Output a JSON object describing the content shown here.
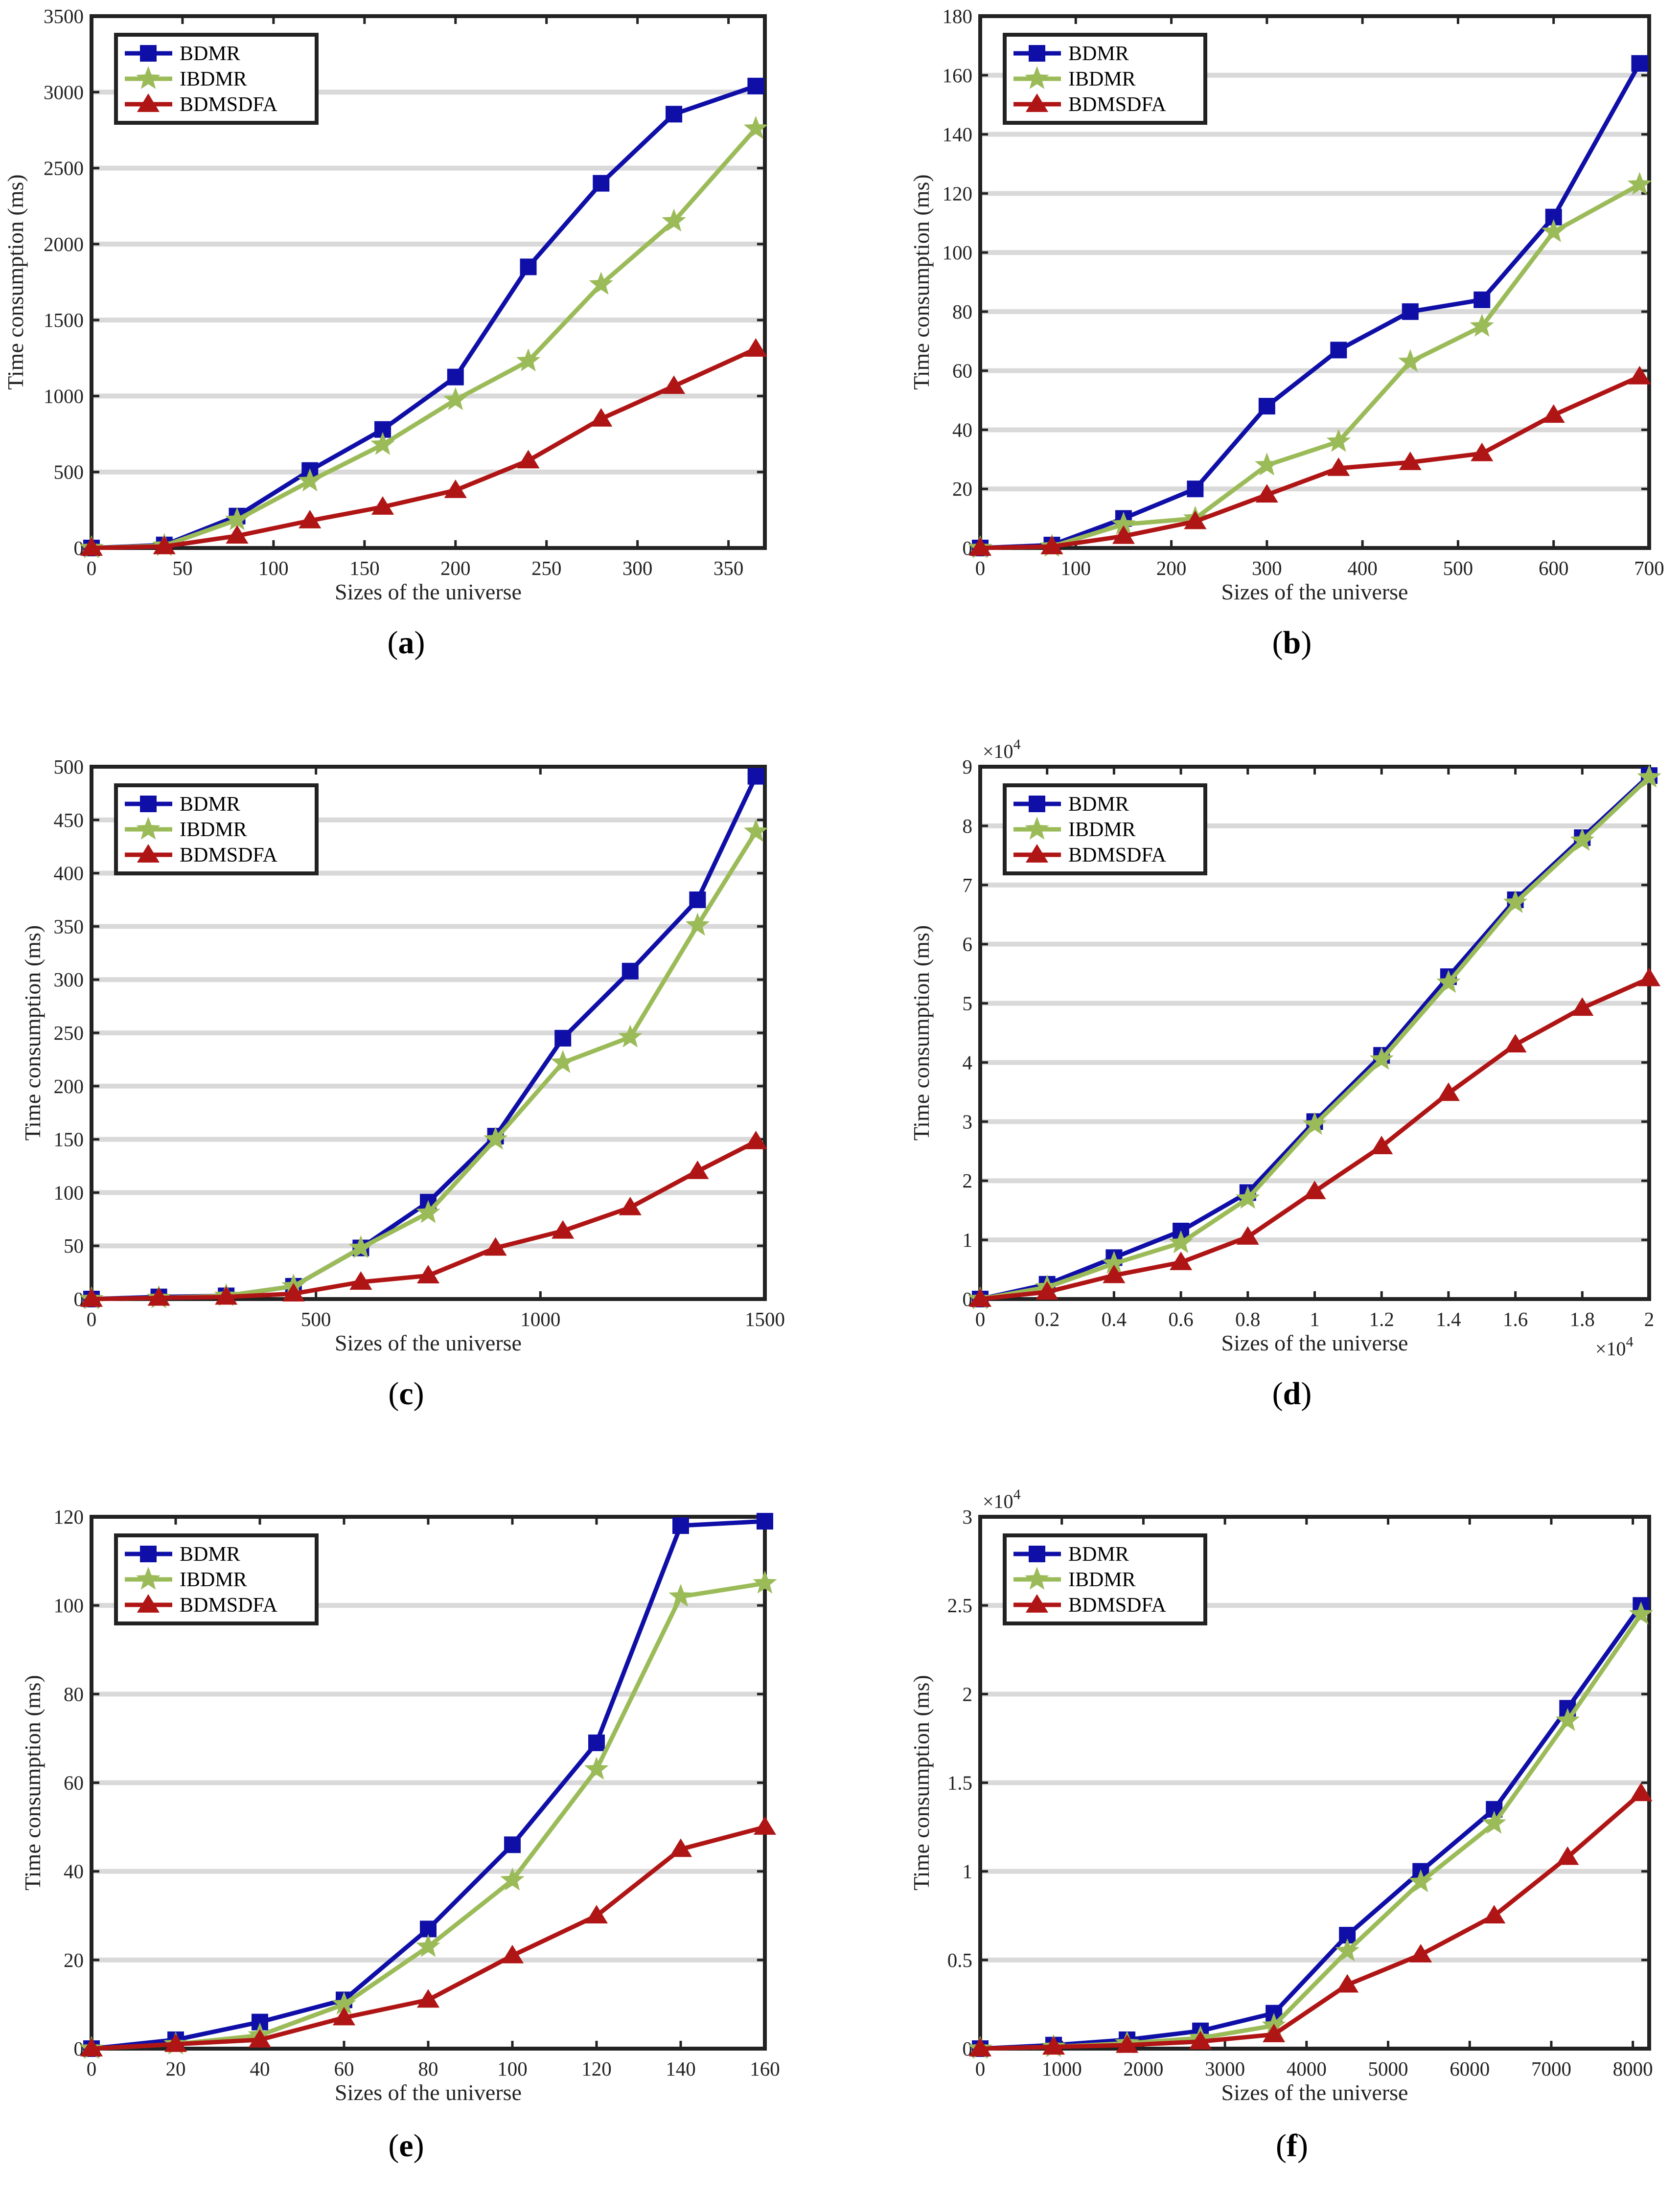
{
  "figure": {
    "series_styles": [
      {
        "name": "BDMR",
        "color": "#0f0fa8",
        "marker": "square"
      },
      {
        "name": "IBDMR",
        "color": "#9bbb59",
        "marker": "star"
      },
      {
        "name": "BDMSDFA",
        "color": "#b01515",
        "marker": "triangle"
      }
    ]
  },
  "chart_data": [
    {
      "panel": "(a)",
      "panel_letter": "a",
      "type": "line",
      "xlabel": "Sizes of the universe",
      "ylabel": "Time consumption (ms)",
      "xlim": [
        0,
        370
      ],
      "ylim": [
        0,
        3500
      ],
      "xticks": [
        0,
        50,
        100,
        150,
        200,
        250,
        300,
        350
      ],
      "yticks": [
        0,
        500,
        1000,
        1500,
        2000,
        2500,
        3000,
        3500
      ],
      "x": [
        0,
        40,
        80,
        120,
        160,
        200,
        240,
        280,
        320,
        365
      ],
      "series": [
        {
          "name": "BDMR",
          "values": [
            0,
            20,
            210,
            510,
            780,
            1125,
            1850,
            2400,
            2855,
            3040
          ]
        },
        {
          "name": "IBDMR",
          "values": [
            0,
            15,
            185,
            440,
            680,
            975,
            1230,
            1735,
            2150,
            2760
          ]
        },
        {
          "name": "BDMSDFA",
          "values": [
            0,
            10,
            80,
            180,
            270,
            380,
            575,
            850,
            1065,
            1310
          ]
        }
      ]
    },
    {
      "panel": "(b)",
      "panel_letter": "b",
      "type": "line",
      "xlabel": "Sizes of the universe",
      "ylabel": "Time consumption (ms)",
      "xlim": [
        0,
        700
      ],
      "ylim": [
        0,
        180
      ],
      "xticks": [
        0,
        100,
        200,
        300,
        400,
        500,
        600,
        700
      ],
      "yticks": [
        0,
        20,
        40,
        60,
        80,
        100,
        120,
        140,
        160,
        180
      ],
      "x": [
        0,
        75,
        150,
        225,
        300,
        375,
        450,
        525,
        600,
        690
      ],
      "series": [
        {
          "name": "BDMR",
          "values": [
            0,
            1,
            10,
            20,
            48,
            67,
            80,
            84,
            112,
            164
          ]
        },
        {
          "name": "IBDMR",
          "values": [
            0,
            0.5,
            8,
            10,
            28,
            36,
            63,
            75,
            107,
            123
          ]
        },
        {
          "name": "BDMSDFA",
          "values": [
            0,
            0.5,
            4,
            9,
            18,
            27,
            29,
            32,
            45,
            58
          ]
        }
      ]
    },
    {
      "panel": "(c)",
      "panel_letter": "c",
      "type": "line",
      "xlabel": "Sizes of the universe",
      "ylabel": "Time consumption (ms)",
      "xlim": [
        0,
        1500
      ],
      "ylim": [
        0,
        500
      ],
      "xticks": [
        0,
        500,
        1000,
        1500
      ],
      "yticks": [
        0,
        50,
        100,
        150,
        200,
        250,
        300,
        350,
        400,
        450,
        500
      ],
      "x": [
        0,
        150,
        300,
        450,
        600,
        750,
        900,
        1050,
        1200,
        1350,
        1480
      ],
      "series": [
        {
          "name": "BDMR",
          "values": [
            0,
            2,
            3,
            12,
            48,
            91,
            153,
            245,
            308,
            375,
            491
          ]
        },
        {
          "name": "IBDMR",
          "values": [
            0,
            1,
            3,
            12,
            48,
            81,
            150,
            222,
            246,
            351,
            439
          ]
        },
        {
          "name": "BDMSDFA",
          "values": [
            0,
            1,
            2,
            5,
            16,
            22,
            48,
            64,
            86,
            120,
            148
          ]
        }
      ]
    },
    {
      "panel": "(d)",
      "panel_letter": "d",
      "type": "line",
      "xlabel": "Sizes of the universe",
      "ylabel": "Time consumption (ms)",
      "xlim": [
        0,
        2
      ],
      "ylim": [
        0,
        9
      ],
      "x_multiplier": "×10",
      "x_exponent": "4",
      "y_multiplier": "×10",
      "y_exponent": "4",
      "xticks": [
        0,
        0.2,
        0.4,
        0.6,
        0.8,
        1,
        1.2,
        1.4,
        1.6,
        1.8,
        2
      ],
      "yticks": [
        0,
        1,
        2,
        3,
        4,
        5,
        6,
        7,
        8,
        9
      ],
      "x": [
        0,
        0.2,
        0.4,
        0.6,
        0.8,
        1.0,
        1.2,
        1.4,
        1.6,
        1.8,
        2.0
      ],
      "series": [
        {
          "name": "BDMR",
          "values": [
            0,
            0.25,
            0.7,
            1.15,
            1.8,
            3.0,
            4.12,
            5.45,
            6.75,
            7.8,
            8.85
          ]
        },
        {
          "name": "IBDMR",
          "values": [
            0,
            0.2,
            0.6,
            0.95,
            1.7,
            2.95,
            4.05,
            5.35,
            6.7,
            7.75,
            8.82
          ]
        },
        {
          "name": "BDMSDFA",
          "values": [
            0,
            0.12,
            0.4,
            0.62,
            1.05,
            1.82,
            2.58,
            3.48,
            4.3,
            4.92,
            5.42
          ]
        }
      ]
    },
    {
      "panel": "(e)",
      "panel_letter": "e",
      "type": "line",
      "xlabel": "Sizes of the universe",
      "ylabel": "Time consumption (ms)",
      "xlim": [
        0,
        160
      ],
      "ylim": [
        0,
        120
      ],
      "xticks": [
        0,
        20,
        40,
        60,
        80,
        100,
        120,
        140,
        160
      ],
      "yticks": [
        0,
        20,
        40,
        60,
        80,
        100,
        120
      ],
      "x": [
        0,
        20,
        40,
        60,
        80,
        100,
        120,
        140,
        160
      ],
      "series": [
        {
          "name": "BDMR",
          "values": [
            0,
            2,
            6,
            11,
            27,
            46,
            69,
            118,
            119
          ]
        },
        {
          "name": "IBDMR",
          "values": [
            0,
            1,
            3,
            10,
            23,
            38,
            63,
            102,
            105
          ]
        },
        {
          "name": "BDMSDFA",
          "values": [
            0,
            1,
            2,
            7,
            11,
            21,
            30,
            45,
            50
          ]
        }
      ]
    },
    {
      "panel": "(f)",
      "panel_letter": "f",
      "type": "line",
      "xlabel": "Sizes of the universe",
      "ylabel": "Time consumption (ms)",
      "xlim": [
        0,
        8200
      ],
      "ylim": [
        0,
        3
      ],
      "y_multiplier": "×10",
      "y_exponent": "4",
      "xticks": [
        0,
        1000,
        2000,
        3000,
        4000,
        5000,
        6000,
        7000,
        8000
      ],
      "yticks": [
        0,
        0.5,
        1,
        1.5,
        2,
        2.5,
        3
      ],
      "x": [
        0,
        900,
        1800,
        2700,
        3600,
        4500,
        5400,
        6300,
        7200,
        8100
      ],
      "series": [
        {
          "name": "BDMR",
          "values": [
            0,
            0.02,
            0.05,
            0.1,
            0.2,
            0.64,
            1.0,
            1.35,
            1.92,
            2.5
          ]
        },
        {
          "name": "IBDMR",
          "values": [
            0,
            0.01,
            0.03,
            0.06,
            0.13,
            0.55,
            0.94,
            1.27,
            1.85,
            2.45
          ]
        },
        {
          "name": "BDMSDFA",
          "values": [
            0,
            0.01,
            0.02,
            0.04,
            0.08,
            0.36,
            0.53,
            0.75,
            1.08,
            1.44
          ]
        }
      ]
    }
  ]
}
